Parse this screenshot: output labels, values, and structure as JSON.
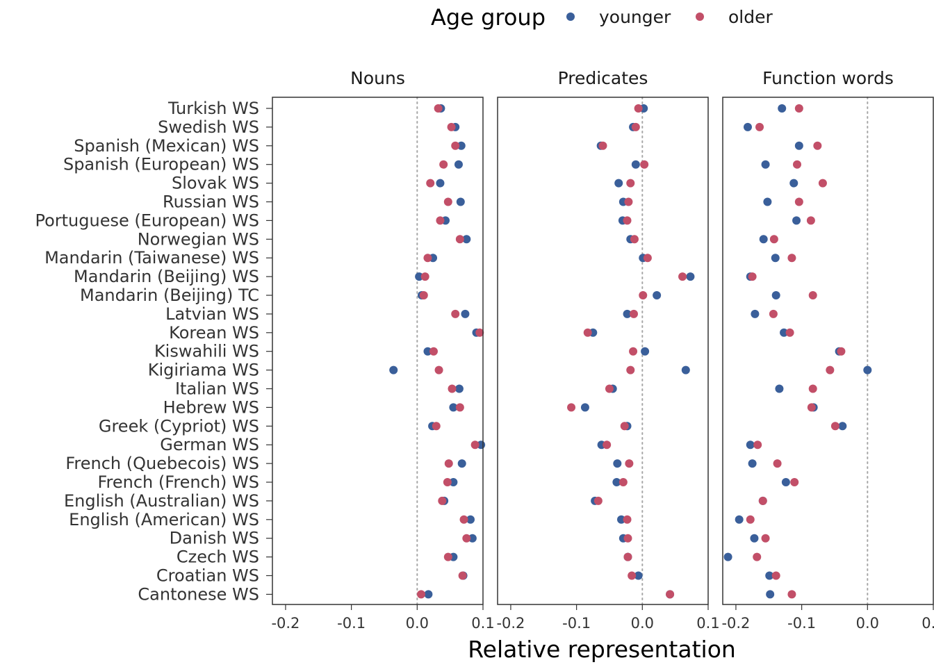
{
  "chart_data": {
    "type": "scatter",
    "xlabel": "Relative representation",
    "legend": {
      "title": "Age group",
      "position": "top",
      "entries": [
        {
          "name": "younger",
          "color": "#3a5f9a"
        },
        {
          "name": "older",
          "color": "#c24f68"
        }
      ]
    },
    "xlim": [
      -0.22,
      0.1
    ],
    "x_ticks": [
      -0.2,
      -0.1,
      0.0,
      0.1
    ],
    "x_tick_labels": [
      "-0.2",
      "-0.1",
      "0.0",
      "0.1"
    ],
    "reference_line": 0,
    "categories": [
      "Turkish WS",
      "Swedish WS",
      "Spanish (Mexican) WS",
      "Spanish (European) WS",
      "Slovak WS",
      "Russian WS",
      "Portuguese (European) WS",
      "Norwegian WS",
      "Mandarin (Taiwanese) WS",
      "Mandarin (Beijing) WS",
      "Mandarin (Beijing) TC",
      "Latvian WS",
      "Korean WS",
      "Kiswahili WS",
      "Kigiriama WS",
      "Italian WS",
      "Hebrew WS",
      "Greek (Cypriot) WS",
      "German WS",
      "French (Quebecois) WS",
      "French (French) WS",
      "English (Australian) WS",
      "English (American) WS",
      "Danish WS",
      "Czech WS",
      "Croatian WS",
      "Cantonese WS"
    ],
    "panels": [
      {
        "title": "Nouns",
        "series": [
          {
            "name": "younger",
            "values": [
              0.036,
              0.058,
              0.067,
              0.063,
              0.035,
              0.066,
              0.043,
              0.075,
              0.024,
              0.003,
              0.007,
              0.073,
              0.09,
              0.016,
              -0.036,
              0.064,
              0.055,
              0.023,
              0.097,
              0.068,
              0.055,
              0.041,
              0.081,
              0.084,
              0.055,
              0.07,
              0.017
            ]
          },
          {
            "name": "older",
            "values": [
              0.032,
              0.052,
              0.058,
              0.04,
              0.02,
              0.047,
              0.035,
              0.065,
              0.016,
              0.012,
              0.01,
              0.058,
              0.095,
              0.025,
              0.033,
              0.053,
              0.065,
              0.029,
              0.088,
              0.048,
              0.046,
              0.038,
              0.071,
              0.075,
              0.047,
              0.069,
              0.006
            ]
          }
        ]
      },
      {
        "title": "Predicates",
        "series": [
          {
            "name": "younger",
            "values": [
              0.002,
              -0.014,
              -0.063,
              -0.01,
              -0.036,
              -0.029,
              -0.03,
              -0.018,
              0.001,
              0.073,
              0.022,
              -0.023,
              -0.075,
              0.004,
              0.066,
              -0.045,
              -0.087,
              -0.023,
              -0.062,
              -0.038,
              -0.039,
              -0.072,
              -0.032,
              -0.029,
              -0.022,
              -0.006,
              0.042
            ]
          },
          {
            "name": "older",
            "values": [
              -0.006,
              -0.01,
              -0.06,
              0.003,
              -0.018,
              -0.021,
              -0.023,
              -0.012,
              0.008,
              0.061,
              0.001,
              -0.013,
              -0.083,
              -0.014,
              -0.018,
              -0.05,
              -0.108,
              -0.027,
              -0.054,
              -0.02,
              -0.029,
              -0.067,
              -0.023,
              -0.022,
              -0.022,
              -0.016,
              0.042
            ]
          }
        ]
      },
      {
        "title": "Function words",
        "series": [
          {
            "name": "younger",
            "values": [
              -0.13,
              -0.182,
              -0.104,
              -0.155,
              -0.112,
              -0.152,
              -0.108,
              -0.158,
              -0.14,
              -0.178,
              -0.139,
              -0.171,
              -0.127,
              -0.043,
              0.0,
              -0.134,
              -0.082,
              -0.038,
              -0.178,
              -0.175,
              -0.124,
              -0.159,
              -0.195,
              -0.172,
              -0.212,
              -0.149,
              -0.148
            ]
          },
          {
            "name": "older",
            "values": [
              -0.104,
              -0.164,
              -0.076,
              -0.107,
              -0.068,
              -0.104,
              -0.086,
              -0.142,
              -0.115,
              -0.175,
              -0.083,
              -0.143,
              -0.118,
              -0.04,
              -0.057,
              -0.083,
              -0.085,
              -0.049,
              -0.167,
              -0.137,
              -0.111,
              -0.159,
              -0.178,
              -0.155,
              -0.168,
              -0.139,
              -0.115
            ]
          }
        ]
      }
    ]
  }
}
